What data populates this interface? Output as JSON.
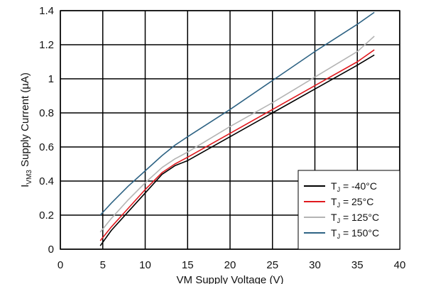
{
  "chart_data": {
    "type": "line",
    "xlabel": "VM Supply Voltage (V)",
    "ylabel_main": "I",
    "ylabel_sub": "VM3",
    "ylabel_rest": " Supply Current (µA)",
    "xlim": [
      0,
      40
    ],
    "ylim": [
      0,
      1.4
    ],
    "xticks": [
      0,
      5,
      10,
      15,
      20,
      25,
      30,
      35,
      40
    ],
    "yticks": [
      0,
      0.2,
      0.4,
      0.6,
      0.8,
      1,
      1.2,
      1.4
    ],
    "xtick_labels": [
      "0",
      "5",
      "10",
      "15",
      "20",
      "25",
      "30",
      "35",
      "40"
    ],
    "ytick_labels": [
      "0",
      "0.2",
      "0.4",
      "0.6",
      "0.8",
      "1",
      "1.2",
      "1.4"
    ],
    "grid": true,
    "legend_position": "bottom-right",
    "series": [
      {
        "name": "-40°C",
        "color": "#000000",
        "x": [
          4.7,
          6,
          8,
          10,
          12,
          13.5,
          15,
          20,
          25,
          30,
          35,
          37
        ],
        "y": [
          0.02,
          0.11,
          0.22,
          0.33,
          0.44,
          0.49,
          0.52,
          0.66,
          0.8,
          0.94,
          1.08,
          1.14
        ]
      },
      {
        "name": "25°C",
        "color": "#e0191e",
        "x": [
          4.7,
          6,
          8,
          10,
          12,
          13.5,
          15,
          20,
          25,
          30,
          35,
          37
        ],
        "y": [
          0.05,
          0.13,
          0.24,
          0.35,
          0.45,
          0.5,
          0.54,
          0.68,
          0.82,
          0.96,
          1.1,
          1.17
        ]
      },
      {
        "name": "125°C",
        "color": "#b4b4b4",
        "x": [
          4.7,
          6,
          8,
          10,
          12,
          13.5,
          15,
          20,
          25,
          30,
          35,
          37
        ],
        "y": [
          0.1,
          0.18,
          0.29,
          0.39,
          0.48,
          0.53,
          0.57,
          0.72,
          0.86,
          1.01,
          1.16,
          1.25
        ]
      },
      {
        "name": "150°C",
        "color": "#2e6384",
        "x": [
          4.7,
          6,
          8,
          10,
          12,
          13.5,
          15,
          20,
          25,
          30,
          35,
          37
        ],
        "y": [
          0.2,
          0.27,
          0.37,
          0.46,
          0.55,
          0.61,
          0.66,
          0.82,
          0.99,
          1.16,
          1.32,
          1.39
        ]
      }
    ],
    "legend_prefix_main": "T",
    "legend_prefix_sub": "J",
    "legend_prefix_rest": " = "
  }
}
